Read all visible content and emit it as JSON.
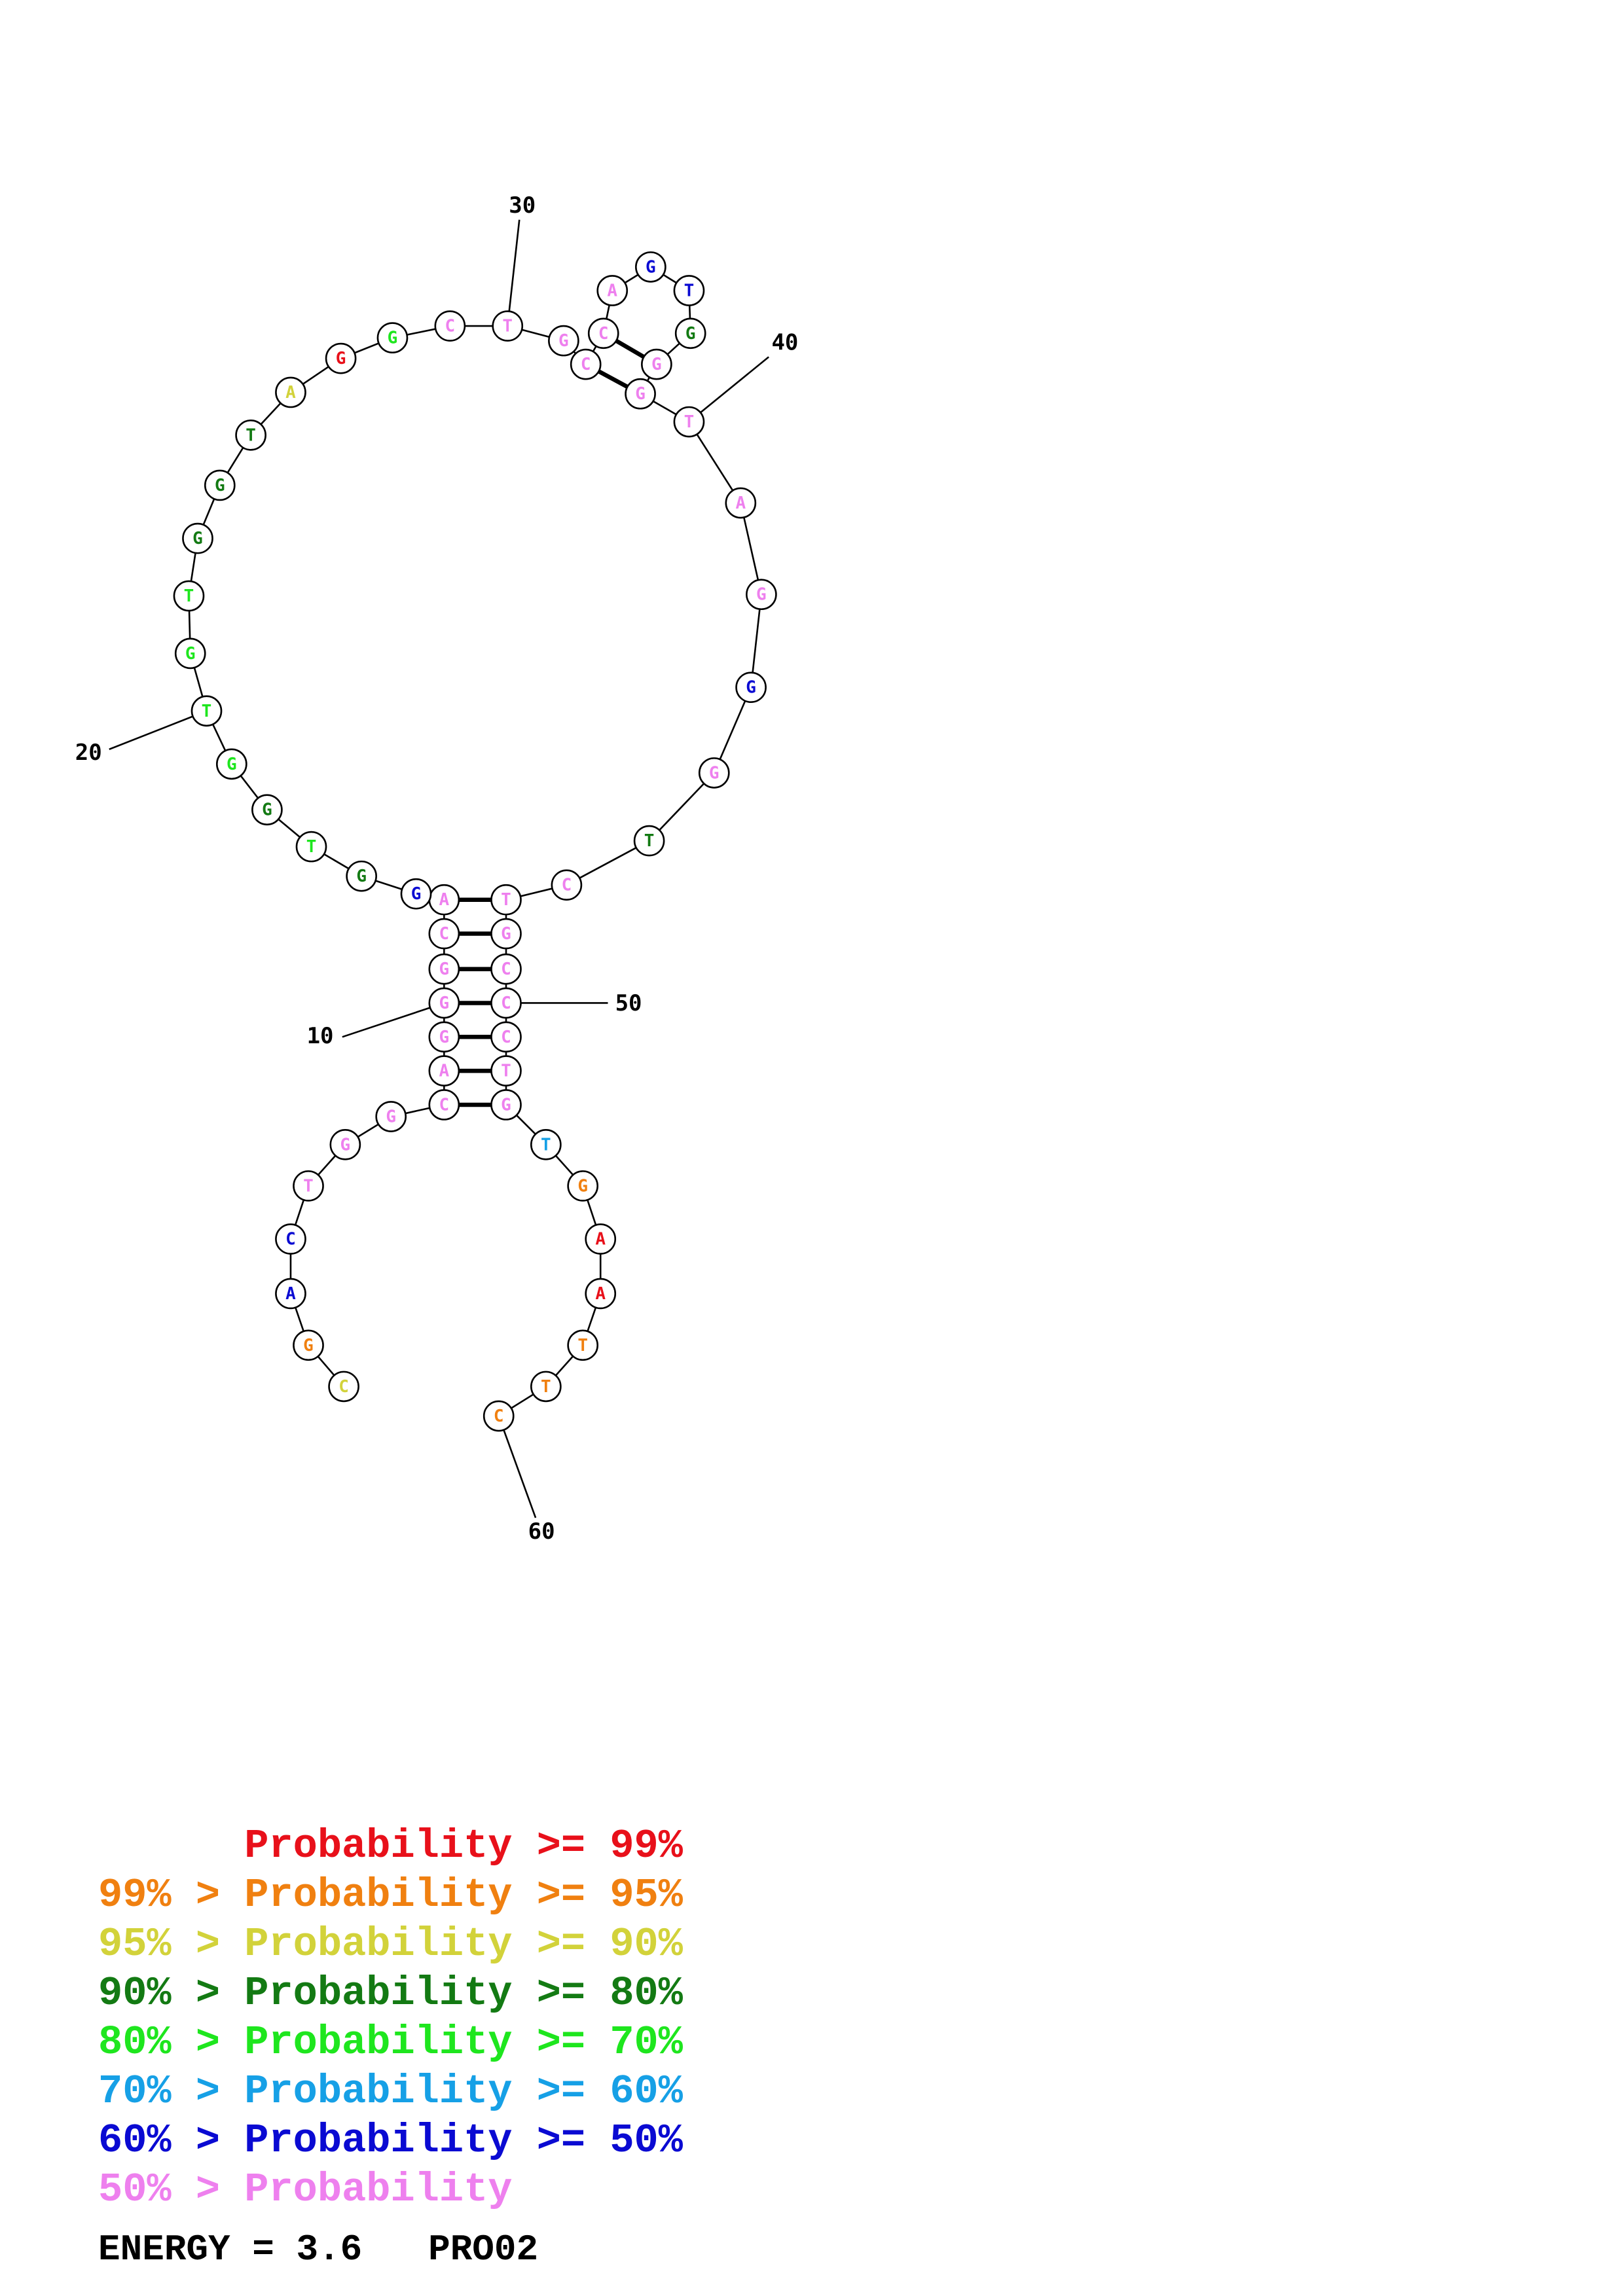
{
  "colors": {
    "p99": "#e8101a",
    "p95": "#f08010",
    "p90": "#d2d23a",
    "p80": "#137a13",
    "p70": "#1ee61e",
    "p60": "#16a0e6",
    "p50": "#0a0ad2",
    "p0": "#ee80ee"
  },
  "position_labels": [
    "10",
    "20",
    "30",
    "40",
    "50",
    "60"
  ],
  "nucleotides": [
    {
      "n": 1,
      "base": "C",
      "tier": "p90"
    },
    {
      "n": 2,
      "base": "G",
      "tier": "p95"
    },
    {
      "n": 3,
      "base": "A",
      "tier": "p50"
    },
    {
      "n": 4,
      "base": "C",
      "tier": "p50"
    },
    {
      "n": 5,
      "base": "T",
      "tier": "p0"
    },
    {
      "n": 6,
      "base": "G",
      "tier": "p0"
    },
    {
      "n": 7,
      "base": "G",
      "tier": "p0"
    },
    {
      "n": 8,
      "base": "C",
      "tier": "p0"
    },
    {
      "n": 9,
      "base": "A",
      "tier": "p0"
    },
    {
      "n": 10,
      "base": "G",
      "tier": "p0"
    },
    {
      "n": 11,
      "base": "G",
      "tier": "p0"
    },
    {
      "n": 12,
      "base": "G",
      "tier": "p0"
    },
    {
      "n": 13,
      "base": "C",
      "tier": "p0"
    },
    {
      "n": 14,
      "base": "A",
      "tier": "p0"
    },
    {
      "n": 15,
      "base": "G",
      "tier": "p50"
    },
    {
      "n": 16,
      "base": "G",
      "tier": "p80"
    },
    {
      "n": 17,
      "base": "T",
      "tier": "p70"
    },
    {
      "n": 18,
      "base": "G",
      "tier": "p80"
    },
    {
      "n": 19,
      "base": "G",
      "tier": "p70"
    },
    {
      "n": 20,
      "base": "T",
      "tier": "p70"
    },
    {
      "n": 21,
      "base": "G",
      "tier": "p70"
    },
    {
      "n": 22,
      "base": "T",
      "tier": "p70"
    },
    {
      "n": 23,
      "base": "G",
      "tier": "p80"
    },
    {
      "n": 24,
      "base": "G",
      "tier": "p80"
    },
    {
      "n": 25,
      "base": "T",
      "tier": "p80"
    },
    {
      "n": 26,
      "base": "A",
      "tier": "p90"
    },
    {
      "n": 27,
      "base": "G",
      "tier": "p99"
    },
    {
      "n": 28,
      "base": "G",
      "tier": "p70"
    },
    {
      "n": 29,
      "base": "C",
      "tier": "p0"
    },
    {
      "n": 30,
      "base": "T",
      "tier": "p0"
    },
    {
      "n": 31,
      "base": "G",
      "tier": "p0"
    },
    {
      "n": 32,
      "base": "C",
      "tier": "p0"
    },
    {
      "n": 33,
      "base": "C",
      "tier": "p0"
    },
    {
      "n": 34,
      "base": "A",
      "tier": "p0"
    },
    {
      "n": 35,
      "base": "G",
      "tier": "p50"
    },
    {
      "n": 36,
      "base": "T",
      "tier": "p50"
    },
    {
      "n": 37,
      "base": "G",
      "tier": "p80"
    },
    {
      "n": 38,
      "base": "G",
      "tier": "p0"
    },
    {
      "n": 39,
      "base": "G",
      "tier": "p0"
    },
    {
      "n": 40,
      "base": "T",
      "tier": "p0"
    },
    {
      "n": 41,
      "base": "A",
      "tier": "p0"
    },
    {
      "n": 42,
      "base": "G",
      "tier": "p0"
    },
    {
      "n": 43,
      "base": "G",
      "tier": "p50"
    },
    {
      "n": 44,
      "base": "G",
      "tier": "p0"
    },
    {
      "n": 45,
      "base": "T",
      "tier": "p80"
    },
    {
      "n": 46,
      "base": "C",
      "tier": "p0"
    },
    {
      "n": 47,
      "base": "T",
      "tier": "p0"
    },
    {
      "n": 48,
      "base": "G",
      "tier": "p0"
    },
    {
      "n": 49,
      "base": "C",
      "tier": "p0"
    },
    {
      "n": 50,
      "base": "C",
      "tier": "p0"
    },
    {
      "n": 51,
      "base": "C",
      "tier": "p0"
    },
    {
      "n": 52,
      "base": "T",
      "tier": "p0"
    },
    {
      "n": 53,
      "base": "G",
      "tier": "p0"
    },
    {
      "n": 54,
      "base": "T",
      "tier": "p60"
    },
    {
      "n": 55,
      "base": "G",
      "tier": "p95"
    },
    {
      "n": 56,
      "base": "A",
      "tier": "p99"
    },
    {
      "n": 57,
      "base": "A",
      "tier": "p99"
    },
    {
      "n": 58,
      "base": "T",
      "tier": "p95"
    },
    {
      "n": 59,
      "base": "T",
      "tier": "p95"
    },
    {
      "n": 60,
      "base": "C",
      "tier": "p95"
    }
  ],
  "base_pairs": [
    [
      8,
      53
    ],
    [
      9,
      52
    ],
    [
      10,
      51
    ],
    [
      11,
      50
    ],
    [
      12,
      49
    ],
    [
      13,
      48
    ],
    [
      14,
      47
    ],
    [
      32,
      39
    ],
    [
      33,
      38
    ]
  ],
  "legend": [
    {
      "text": "      Probability >= 99%",
      "tier": "p99"
    },
    {
      "text": "99% > Probability >= 95%",
      "tier": "p95"
    },
    {
      "text": "95% > Probability >= 90%",
      "tier": "p90"
    },
    {
      "text": "90% > Probability >= 80%",
      "tier": "p80"
    },
    {
      "text": "80% > Probability >= 70%",
      "tier": "p70"
    },
    {
      "text": "70% > Probability >= 60%",
      "tier": "p60"
    },
    {
      "text": "60% > Probability >= 50%",
      "tier": "p50"
    },
    {
      "text": "50% > Probability",
      "tier": "p0"
    }
  ],
  "footer": "ENERGY = 3.6   PRO02"
}
